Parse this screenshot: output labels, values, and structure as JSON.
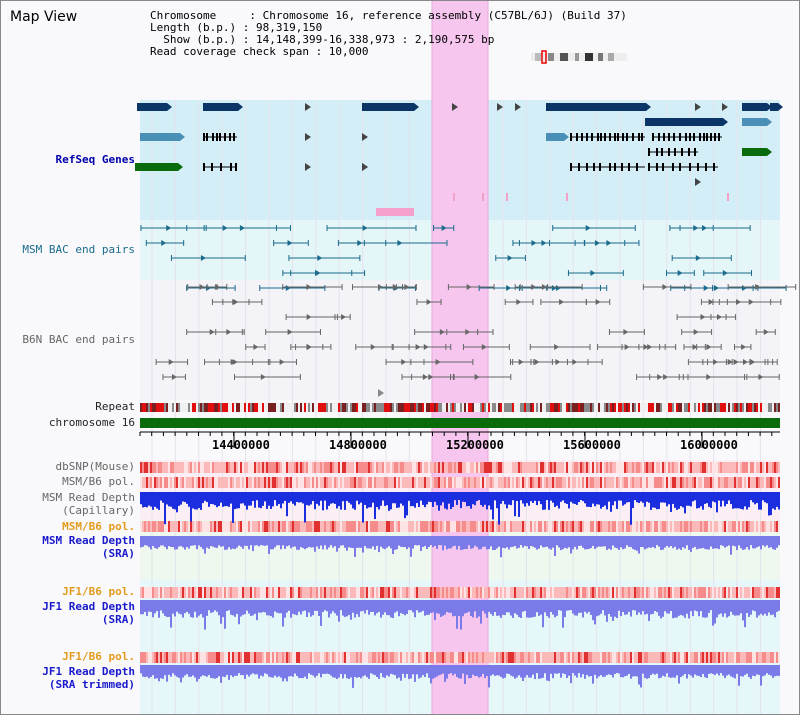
{
  "window": {
    "title": "Map View"
  },
  "header": {
    "chromosome_line": "Chromosome     : Chromosome 16, reference assembly (C57BL/6J) (Build 37)",
    "length_line": "Length (b.p.) : 98,319,150",
    "show_line": "Show (b.p.) : 14,148,399-16,338,973 : 2,190,575 bp",
    "coverage_line": "Read coverage check span : 10,000"
  },
  "tracks": {
    "refseq": "RefSeq Genes",
    "msm_bac": "MSM BAC end pairs",
    "b6n_bac": "B6N BAC end pairs",
    "repeat": "Repeat",
    "chromosome": "chromosome 16",
    "dbsnp": "dbSNP(Mouse)",
    "msm_b6_pol_1": "MSM/B6 pol.",
    "msm_read_depth_cap_1": "MSM Read Depth",
    "msm_read_depth_cap_2": "(Capillary)",
    "msm_b6_pol_2": "MSM/B6 pol.",
    "msm_read_depth_sra_1": "MSM Read Depth",
    "msm_read_depth_sra_2": "(SRA)",
    "jf1_b6_pol_1": "JF1/B6 pol.",
    "jf1_read_depth_sra_1": "JF1 Read Depth",
    "jf1_read_depth_sra_2": "(SRA)",
    "jf1_b6_pol_2": "JF1/B6 pol.",
    "jf1_read_depth_trim_1": "JF1 Read Depth",
    "jf1_read_depth_trim_2": "(SRA trimmed)"
  },
  "axis": {
    "ticks": [
      "14400000",
      "14800000",
      "15200000",
      "15600000",
      "16000000"
    ]
  },
  "colors": {
    "highlight": "#f6c6ee",
    "refseq_bg": "#d4eef8",
    "msm_bg": "#e4f6f8",
    "chromosome_bar": "#0a6b0a",
    "navy_gene": "#0b3566",
    "steel_gene": "#4a8fb5",
    "green_gene": "#0a6b0a",
    "read_depth_capillary": "#1a2ee0",
    "read_depth_sra": "#7a7ae8",
    "snp_red": "#e03030"
  }
}
